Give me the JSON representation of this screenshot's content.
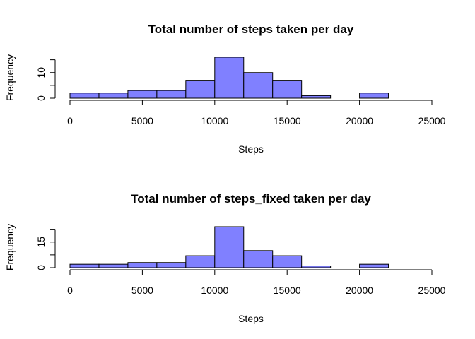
{
  "chart_data": [
    {
      "type": "bar",
      "title": "Total number of steps taken per day",
      "xlabel": "Steps",
      "ylabel": "Frequency",
      "bin_edges": [
        0,
        2000,
        4000,
        6000,
        8000,
        10000,
        12000,
        14000,
        16000,
        18000,
        20000,
        22000
      ],
      "values": [
        2,
        2,
        3,
        3,
        7,
        16,
        10,
        7,
        1,
        0,
        2
      ],
      "xlim": [
        0,
        25000
      ],
      "xticks": [
        "0",
        "5000",
        "10000",
        "15000",
        "20000",
        "25000"
      ],
      "ylim": [
        0,
        16
      ],
      "yticks": [
        "0",
        "10"
      ],
      "bar_color": "#8080ff",
      "grid": false
    },
    {
      "type": "bar",
      "title": "Total number of steps_fixed taken per day",
      "xlabel": "Steps",
      "ylabel": "Frequency",
      "bin_edges": [
        0,
        2000,
        4000,
        6000,
        8000,
        10000,
        12000,
        14000,
        16000,
        18000,
        20000,
        22000
      ],
      "values": [
        2,
        2,
        3,
        3,
        7,
        24,
        10,
        7,
        1,
        0,
        2
      ],
      "xlim": [
        0,
        25000
      ],
      "xticks": [
        "0",
        "5000",
        "10000",
        "15000",
        "20000",
        "25000"
      ],
      "ylim": [
        0,
        24
      ],
      "yticks": [
        "0",
        "15"
      ],
      "bar_color": "#8080ff",
      "grid": false
    }
  ]
}
